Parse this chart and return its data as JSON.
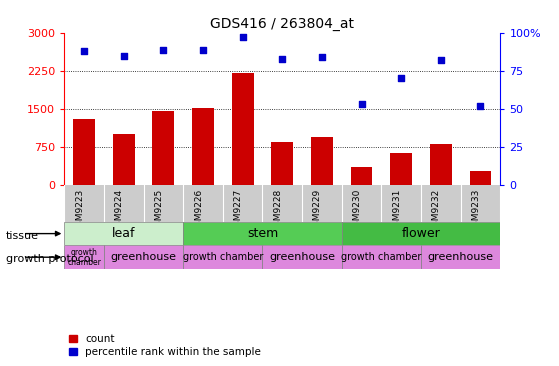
{
  "title": "GDS416 / 263804_at",
  "samples": [
    "GSM9223",
    "GSM9224",
    "GSM9225",
    "GSM9226",
    "GSM9227",
    "GSM9228",
    "GSM9229",
    "GSM9230",
    "GSM9231",
    "GSM9232",
    "GSM9233"
  ],
  "counts": [
    1300,
    1000,
    1450,
    1510,
    2200,
    850,
    950,
    350,
    620,
    800,
    280
  ],
  "percentiles": [
    88,
    85,
    89,
    89,
    97,
    83,
    84,
    53,
    70,
    82,
    52
  ],
  "left_ylim": [
    0,
    3000
  ],
  "right_ylim": [
    0,
    100
  ],
  "left_yticks": [
    0,
    750,
    1500,
    2250,
    3000
  ],
  "right_yticks": [
    0,
    25,
    50,
    75,
    100
  ],
  "bar_color": "#cc0000",
  "dot_color": "#0000cc",
  "tick_bg_color": "#cccccc",
  "tissue_groups": [
    {
      "label": "leaf",
      "start": 0,
      "end": 3,
      "color": "#cceecc"
    },
    {
      "label": "stem",
      "start": 3,
      "end": 7,
      "color": "#55cc55"
    },
    {
      "label": "flower",
      "start": 7,
      "end": 11,
      "color": "#44bb44"
    }
  ],
  "protocol_groups": [
    {
      "label": "growth\nchamber",
      "start": 0,
      "end": 1,
      "color": "#dd88dd",
      "fontsize": 5.5
    },
    {
      "label": "greenhouse",
      "start": 1,
      "end": 3,
      "color": "#dd88dd",
      "fontsize": 8
    },
    {
      "label": "growth chamber",
      "start": 3,
      "end": 5,
      "color": "#dd88dd",
      "fontsize": 7
    },
    {
      "label": "greenhouse",
      "start": 5,
      "end": 7,
      "color": "#dd88dd",
      "fontsize": 8
    },
    {
      "label": "growth chamber",
      "start": 7,
      "end": 9,
      "color": "#dd88dd",
      "fontsize": 7
    },
    {
      "label": "greenhouse",
      "start": 9,
      "end": 11,
      "color": "#dd88dd",
      "fontsize": 8
    }
  ],
  "legend_count_label": "count",
  "legend_pct_label": "percentile rank within the sample",
  "tissue_label": "tissue",
  "protocol_label": "growth protocol"
}
